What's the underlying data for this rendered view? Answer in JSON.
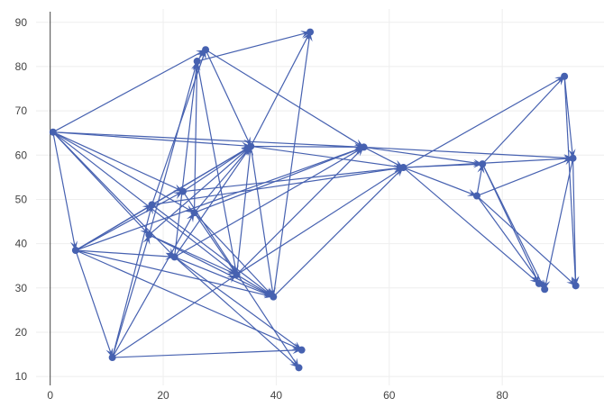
{
  "chart_data": {
    "type": "scatter",
    "mode": "lines+markers with arrows",
    "title": "",
    "xlabel": "",
    "ylabel": "",
    "xlim": [
      -2.5,
      98
    ],
    "ylim": [
      8,
      93
    ],
    "x_ticks": [
      0,
      20,
      40,
      60,
      80
    ],
    "y_ticks": [
      10,
      20,
      30,
      40,
      50,
      60,
      70,
      80,
      90
    ],
    "grid": true,
    "legend": "none",
    "color": "#4661B0",
    "nodes": [
      {
        "id": "A",
        "x": 0.5,
        "y": 65.2
      },
      {
        "id": "B",
        "x": 4.5,
        "y": 38.5
      },
      {
        "id": "C",
        "x": 11.0,
        "y": 14.3
      },
      {
        "id": "D",
        "x": 17.5,
        "y": 42.0
      },
      {
        "id": "E",
        "x": 18.0,
        "y": 48.8
      },
      {
        "id": "F",
        "x": 22.0,
        "y": 37.0
      },
      {
        "id": "G",
        "x": 23.5,
        "y": 51.8
      },
      {
        "id": "H",
        "x": 25.5,
        "y": 47.0
      },
      {
        "id": "I",
        "x": 26.0,
        "y": 81.2
      },
      {
        "id": "J",
        "x": 27.5,
        "y": 83.8
      },
      {
        "id": "K",
        "x": 33.0,
        "y": 33.0
      },
      {
        "id": "L",
        "x": 35.5,
        "y": 62.0
      },
      {
        "id": "M",
        "x": 39.5,
        "y": 28.0
      },
      {
        "id": "N",
        "x": 44.0,
        "y": 12.0
      },
      {
        "id": "O",
        "x": 44.5,
        "y": 16.0
      },
      {
        "id": "P",
        "x": 46.0,
        "y": 87.8
      },
      {
        "id": "Q",
        "x": 55.5,
        "y": 61.8
      },
      {
        "id": "R",
        "x": 62.5,
        "y": 57.2
      },
      {
        "id": "S",
        "x": 75.5,
        "y": 50.8
      },
      {
        "id": "T",
        "x": 76.5,
        "y": 58.0
      },
      {
        "id": "U",
        "x": 86.5,
        "y": 31.0
      },
      {
        "id": "V",
        "x": 87.5,
        "y": 29.7
      },
      {
        "id": "W",
        "x": 91.0,
        "y": 77.8
      },
      {
        "id": "X",
        "x": 92.5,
        "y": 59.3
      },
      {
        "id": "Y",
        "x": 93.0,
        "y": 30.5
      }
    ],
    "edges": [
      [
        "A",
        "J"
      ],
      [
        "A",
        "L"
      ],
      [
        "A",
        "Q"
      ],
      [
        "A",
        "B"
      ],
      [
        "A",
        "D"
      ],
      [
        "A",
        "F"
      ],
      [
        "A",
        "G"
      ],
      [
        "A",
        "H"
      ],
      [
        "A",
        "K"
      ],
      [
        "B",
        "E"
      ],
      [
        "B",
        "G"
      ],
      [
        "B",
        "L"
      ],
      [
        "B",
        "M"
      ],
      [
        "B",
        "F"
      ],
      [
        "B",
        "O"
      ],
      [
        "B",
        "Q"
      ],
      [
        "B",
        "C"
      ],
      [
        "C",
        "E"
      ],
      [
        "C",
        "H"
      ],
      [
        "C",
        "D"
      ],
      [
        "C",
        "O"
      ],
      [
        "C",
        "K"
      ],
      [
        "D",
        "I"
      ],
      [
        "D",
        "L"
      ],
      [
        "D",
        "K"
      ],
      [
        "D",
        "M"
      ],
      [
        "E",
        "J"
      ],
      [
        "E",
        "L"
      ],
      [
        "E",
        "M"
      ],
      [
        "E",
        "R"
      ],
      [
        "F",
        "I"
      ],
      [
        "F",
        "L"
      ],
      [
        "F",
        "N"
      ],
      [
        "F",
        "Q"
      ],
      [
        "F",
        "O"
      ],
      [
        "F",
        "M"
      ],
      [
        "G",
        "R"
      ],
      [
        "G",
        "N"
      ],
      [
        "G",
        "L"
      ],
      [
        "H",
        "I"
      ],
      [
        "H",
        "L"
      ],
      [
        "H",
        "Q"
      ],
      [
        "H",
        "M"
      ],
      [
        "H",
        "K"
      ],
      [
        "I",
        "J"
      ],
      [
        "I",
        "P"
      ],
      [
        "I",
        "K"
      ],
      [
        "J",
        "L"
      ],
      [
        "J",
        "Q"
      ],
      [
        "K",
        "L"
      ],
      [
        "K",
        "Q"
      ],
      [
        "K",
        "R"
      ],
      [
        "K",
        "M"
      ],
      [
        "L",
        "Q"
      ],
      [
        "L",
        "P"
      ],
      [
        "L",
        "M"
      ],
      [
        "L",
        "R"
      ],
      [
        "M",
        "R"
      ],
      [
        "M",
        "P"
      ],
      [
        "Q",
        "T"
      ],
      [
        "Q",
        "R"
      ],
      [
        "Q",
        "X"
      ],
      [
        "R",
        "W"
      ],
      [
        "R",
        "T"
      ],
      [
        "R",
        "S"
      ],
      [
        "R",
        "U"
      ],
      [
        "R",
        "X"
      ],
      [
        "S",
        "T"
      ],
      [
        "S",
        "X"
      ],
      [
        "S",
        "V"
      ],
      [
        "S",
        "Y"
      ],
      [
        "T",
        "U"
      ],
      [
        "T",
        "W"
      ],
      [
        "T",
        "V"
      ],
      [
        "W",
        "Y"
      ],
      [
        "W",
        "X"
      ],
      [
        "X",
        "Y"
      ],
      [
        "X",
        "V"
      ]
    ]
  }
}
